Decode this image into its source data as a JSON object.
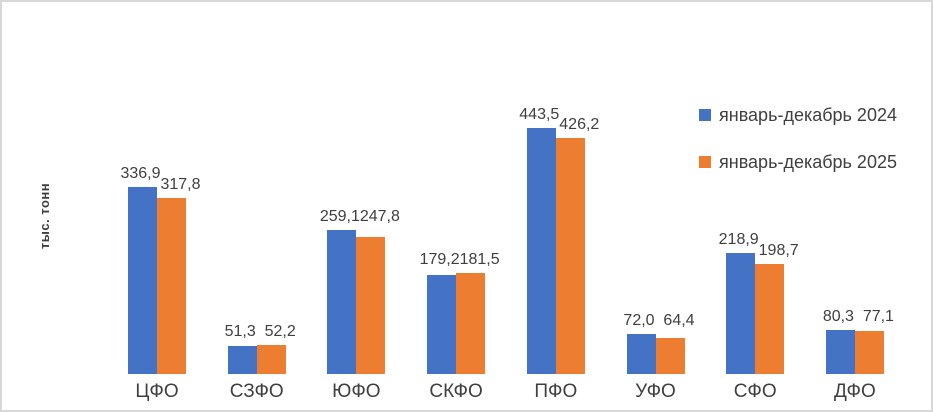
{
  "chart_data": {
    "type": "bar",
    "title": "",
    "xlabel": "",
    "ylabel": "тыс. тонн",
    "categories": [
      "ЦФО",
      "СЗФО",
      "ЮФО",
      "СКФО",
      "ПФО",
      "УФО",
      "СФО",
      "ДФО"
    ],
    "series": [
      {
        "name": "январь-декабрь 2024",
        "color": "#4472C4",
        "values": [
          336.9,
          51.3,
          259.1,
          179.2,
          443.5,
          72.0,
          218.9,
          80.3
        ]
      },
      {
        "name": "январь-декабрь 2025",
        "color": "#ED7D31",
        "values": [
          317.8,
          52.2,
          247.8,
          181.5,
          426.2,
          64.4,
          198.7,
          77.1
        ]
      }
    ],
    "data_labels": true,
    "decimal_separator": ",",
    "grid": false,
    "legend_position": "right",
    "ylim": [
      0,
      460
    ]
  }
}
